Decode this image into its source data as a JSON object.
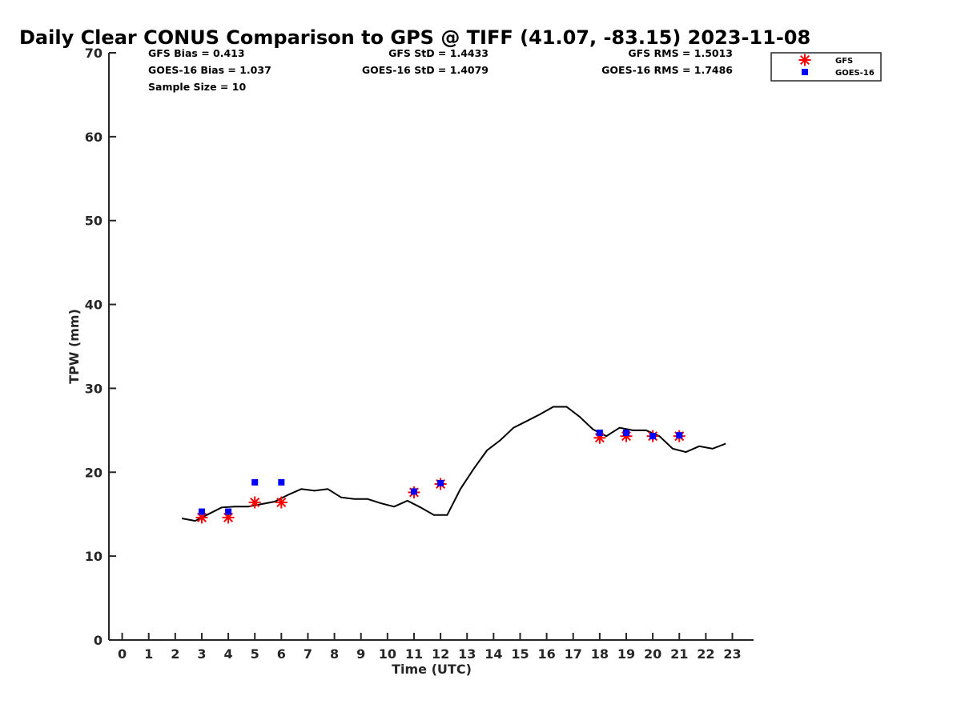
{
  "chart_data": {
    "type": "line",
    "title": "Daily Clear CONUS Comparison to GPS @ TIFF (41.07, -83.15) 2023-11-08",
    "xlabel": "Time (UTC)",
    "ylabel": "TPW (mm)",
    "xlim": [
      -0.5,
      23.8
    ],
    "ylim": [
      0,
      70
    ],
    "xticks": [
      "0",
      "1",
      "2",
      "3",
      "4",
      "5",
      "6",
      "7",
      "8",
      "9",
      "10",
      "11",
      "12",
      "13",
      "14",
      "15",
      "16",
      "17",
      "18",
      "19",
      "20",
      "21",
      "22",
      "23"
    ],
    "yticks": [
      "0",
      "10",
      "20",
      "30",
      "40",
      "50",
      "60",
      "70"
    ],
    "grid": false,
    "legend_position": "top-right",
    "stats": {
      "gfs_bias": "GFS Bias = 0.413",
      "goes_bias": "GOES-16 Bias = 1.037",
      "sample_size": "Sample Size = 10",
      "gfs_std": "GFS StD = 1.4433",
      "goes_std": "GOES-16 StD = 1.4079",
      "gfs_rms": "GFS RMS = 1.5013",
      "goes_rms": "GOES-16 RMS = 1.7486"
    },
    "gps_series": {
      "color": "#000000",
      "x": [
        2.25,
        2.75,
        3.25,
        3.75,
        4.25,
        4.75,
        5.25,
        5.75,
        6.25,
        6.75,
        7.25,
        7.75,
        8.25,
        8.75,
        9.25,
        9.75,
        10.25,
        10.75,
        11.25,
        11.75,
        12.25,
        12.75,
        13.25,
        13.75,
        14.25,
        14.75,
        15.25,
        15.75,
        16.25,
        16.75,
        17.25,
        17.75,
        18.25,
        18.75,
        19.25,
        19.75,
        20.25,
        20.75,
        21.25,
        21.75,
        22.25,
        22.75
      ],
      "y": [
        14.5,
        14.2,
        15.0,
        15.8,
        15.9,
        15.9,
        16.2,
        16.5,
        17.3,
        18.0,
        17.8,
        18.0,
        17.0,
        16.8,
        16.8,
        16.3,
        15.9,
        16.6,
        15.8,
        14.9,
        14.9,
        18.0,
        20.4,
        22.6,
        23.8,
        25.3,
        26.1,
        26.9,
        27.8,
        27.8,
        26.6,
        25.1,
        24.3,
        25.3,
        25.0,
        25.0,
        24.3,
        22.8,
        22.4,
        23.1,
        22.8,
        23.4
      ]
    },
    "series": [
      {
        "name": "GFS",
        "marker": "asterisk",
        "color": "#ff0000",
        "x": [
          3,
          4,
          5,
          6,
          11,
          12,
          18,
          19,
          20,
          21
        ],
        "y": [
          14.6,
          14.6,
          16.4,
          16.4,
          17.6,
          18.6,
          24.1,
          24.3,
          24.3,
          24.3
        ]
      },
      {
        "name": "GOES-16",
        "marker": "square",
        "color": "#0000ff",
        "x": [
          3,
          4,
          5,
          6,
          11,
          12,
          18,
          19,
          20,
          21
        ],
        "y": [
          15.3,
          15.3,
          18.8,
          18.8,
          17.7,
          18.7,
          24.7,
          24.7,
          24.3,
          24.4
        ]
      }
    ]
  }
}
